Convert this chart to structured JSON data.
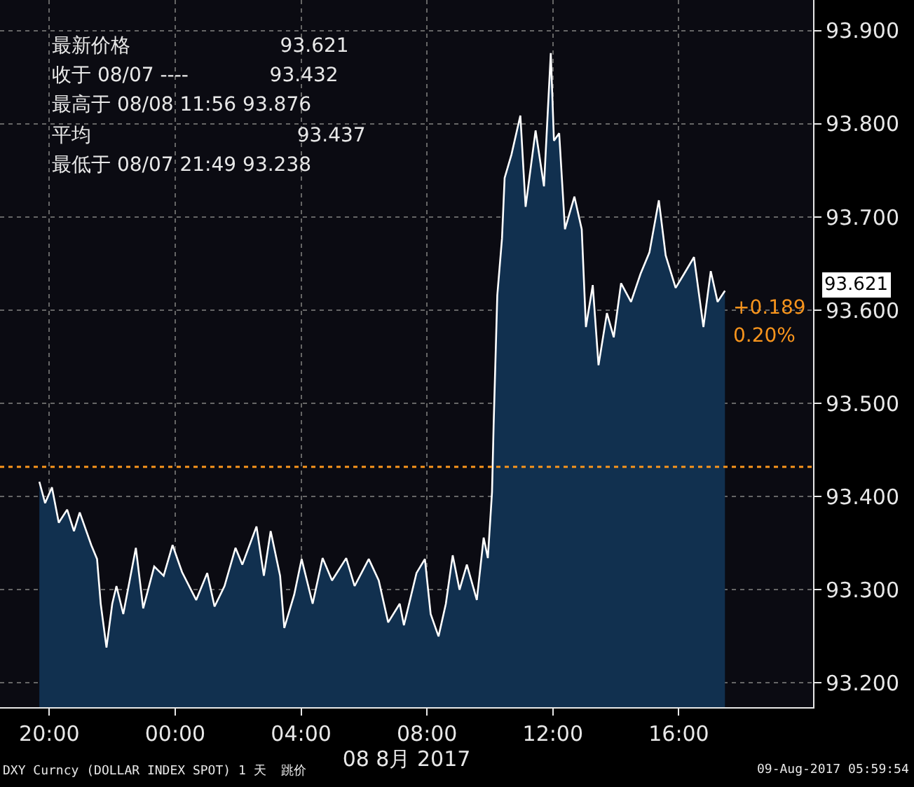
{
  "chart_data": {
    "type": "area",
    "xlabel": "08 8月 2017",
    "x": [
      "2017-08-07T19:41",
      "2017-08-07T19:52",
      "2017-08-07T20:05",
      "2017-08-07T20:18",
      "2017-08-07T20:34",
      "2017-08-07T20:47",
      "2017-08-07T20:58",
      "2017-08-07T21:20",
      "2017-08-07T21:31",
      "2017-08-07T21:38",
      "2017-08-07T21:49",
      "2017-08-07T22:00",
      "2017-08-07T22:08",
      "2017-08-07T22:21",
      "2017-08-07T22:45",
      "2017-08-07T22:59",
      "2017-08-07T23:20",
      "2017-08-07T23:38",
      "2017-08-07T23:55",
      "2017-08-08T00:13",
      "2017-08-08T00:40",
      "2017-08-08T01:01",
      "2017-08-08T01:15",
      "2017-08-08T01:34",
      "2017-08-08T01:55",
      "2017-08-08T02:08",
      "2017-08-08T02:35",
      "2017-08-08T02:49",
      "2017-08-08T03:02",
      "2017-08-08T03:20",
      "2017-08-08T03:28",
      "2017-08-08T03:47",
      "2017-08-08T04:01",
      "2017-08-08T04:22",
      "2017-08-08T04:41",
      "2017-08-08T04:59",
      "2017-08-08T05:26",
      "2017-08-08T05:42",
      "2017-08-08T06:09",
      "2017-08-08T06:28",
      "2017-08-08T06:46",
      "2017-08-08T07:08",
      "2017-08-08T07:16",
      "2017-08-08T07:40",
      "2017-08-08T07:56",
      "2017-08-08T08:07",
      "2017-08-08T08:22",
      "2017-08-08T08:36",
      "2017-08-08T08:49",
      "2017-08-08T09:02",
      "2017-08-08T09:16",
      "2017-08-08T09:35",
      "2017-08-08T09:48",
      "2017-08-08T09:56",
      "2017-08-08T10:04",
      "2017-08-08T10:07",
      "2017-08-08T10:14",
      "2017-08-08T10:23",
      "2017-08-08T10:28",
      "2017-08-08T10:41",
      "2017-08-08T10:58",
      "2017-08-08T11:08",
      "2017-08-08T11:27",
      "2017-08-08T11:43",
      "2017-08-08T11:56",
      "2017-08-08T12:02",
      "2017-08-08T12:12",
      "2017-08-08T12:23",
      "2017-08-08T12:41",
      "2017-08-08T12:55",
      "2017-08-08T13:03",
      "2017-08-08T13:16",
      "2017-08-08T13:27",
      "2017-08-08T13:43",
      "2017-08-08T13:56",
      "2017-08-08T14:10",
      "2017-08-08T14:29",
      "2017-08-08T14:47",
      "2017-08-08T15:04",
      "2017-08-08T15:22",
      "2017-08-08T15:35",
      "2017-08-08T15:54",
      "2017-08-08T16:10",
      "2017-08-08T16:29",
      "2017-08-08T16:47",
      "2017-08-08T17:01",
      "2017-08-08T17:14",
      "2017-08-08T17:28"
    ],
    "series": [
      {
        "color": "#ffffff",
        "values": [
          93.416,
          93.393,
          93.41,
          93.372,
          93.386,
          93.363,
          93.383,
          93.348,
          93.333,
          93.285,
          93.238,
          93.285,
          93.304,
          93.274,
          93.345,
          93.28,
          93.325,
          93.315,
          93.348,
          93.319,
          93.289,
          93.318,
          93.282,
          93.304,
          93.345,
          93.327,
          93.368,
          93.315,
          93.363,
          93.315,
          93.259,
          93.295,
          93.333,
          93.285,
          93.334,
          93.31,
          93.334,
          93.304,
          93.333,
          93.31,
          93.265,
          93.285,
          93.262,
          93.318,
          93.333,
          93.274,
          93.25,
          93.285,
          93.337,
          93.3,
          93.327,
          93.289,
          93.356,
          93.334,
          93.405,
          93.476,
          93.616,
          93.677,
          93.742,
          93.767,
          93.809,
          93.711,
          93.793,
          93.733,
          93.876,
          93.782,
          93.79,
          93.687,
          93.722,
          93.687,
          93.582,
          93.627,
          93.541,
          93.597,
          93.571,
          93.629,
          93.609,
          93.639,
          93.662,
          93.718,
          93.659,
          93.624,
          93.639,
          93.657,
          93.582,
          93.642,
          93.609,
          93.621
        ]
      }
    ],
    "xlim": [
      "2017-08-07T18:26",
      "2017-08-08T20:16"
    ],
    "xticks": [
      {
        "value": "2017-08-07T20:00",
        "label": "20:00"
      },
      {
        "value": "2017-08-08T00:00",
        "label": "00:00"
      },
      {
        "value": "2017-08-08T04:00",
        "label": "04:00"
      },
      {
        "value": "2017-08-08T08:00",
        "label": "08:00"
      },
      {
        "value": "2017-08-08T12:00",
        "label": "12:00"
      },
      {
        "value": "2017-08-08T16:00",
        "label": "16:00"
      }
    ],
    "ylim": [
      93.174,
      93.933
    ],
    "yticks": [
      {
        "value": 93.2,
        "label": "93.200"
      },
      {
        "value": 93.3,
        "label": "93.300"
      },
      {
        "value": 93.4,
        "label": "93.400"
      },
      {
        "value": 93.5,
        "label": "93.500"
      },
      {
        "value": 93.6,
        "label": "93.600"
      },
      {
        "value": 93.7,
        "label": "93.700"
      },
      {
        "value": 93.8,
        "label": "93.800"
      },
      {
        "value": 93.9,
        "label": "93.900"
      }
    ],
    "ref_lines": [
      {
        "axis": "y",
        "value": 93.432,
        "color": "#f7941d",
        "line_style": "dotted"
      }
    ],
    "annotations": [
      "最新价格                        93.621",
      "收于 08/07 ----             93.432",
      "最高于 08/08 11:56 93.876",
      "平均                                 93.437",
      "最低于 08/07 21:49 93.238",
      "DXY Curncy (DOLLAR INDEX SPOT) 1 天  跳价",
      "09-Aug-2017 05:59:54",
      "93.621",
      {
        "text": "+0.189",
        "x": "2017-08-08T17:28",
        "y": 93.621
      },
      {
        "text": "0.20%",
        "x": "2017-08-08T17:28",
        "y": 93.621
      }
    ],
    "grid": true,
    "legend": false,
    "line_style": "solid",
    "marker": "none"
  }
}
